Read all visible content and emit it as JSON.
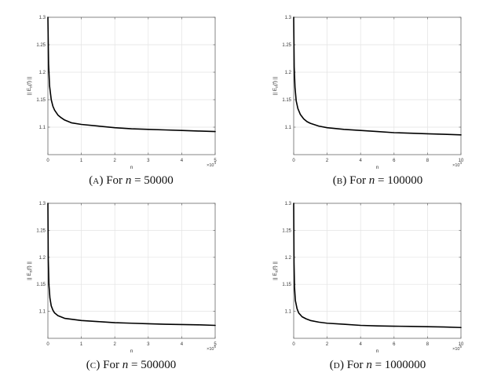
{
  "chart_data": [
    {
      "type": "line",
      "caption": {
        "letter": "A",
        "prefix": "For",
        "variable": "n",
        "eq": "=",
        "value": "50000"
      },
      "xlabel": "n",
      "ylabel": "|| E_n(f) ||",
      "x_multiplier": "×10",
      "x_exponent": "4",
      "xlim": [
        0,
        5
      ],
      "ylim": [
        1.05,
        1.3
      ],
      "xticks": [
        0,
        1,
        2,
        3,
        4,
        5
      ],
      "xtick_labels": [
        "0",
        "1",
        "2",
        "3",
        "4",
        "5"
      ],
      "yticks": [
        1.1,
        1.15,
        1.2,
        1.25,
        1.3
      ],
      "ytick_labels": [
        "1.1",
        "1.15",
        "1.2",
        "1.25",
        "1.3"
      ],
      "grid": true,
      "series": [
        {
          "color": "#000000",
          "x": [
            0.0,
            0.02,
            0.05,
            0.1,
            0.15,
            0.2,
            0.3,
            0.4,
            0.5,
            0.7,
            1,
            1.5,
            2,
            2.5,
            3,
            3.5,
            4,
            4.5,
            5
          ],
          "y": [
            1.3,
            1.215,
            1.175,
            1.15,
            1.138,
            1.131,
            1.122,
            1.117,
            1.113,
            1.108,
            1.105,
            1.102,
            1.099,
            1.097,
            1.096,
            1.095,
            1.094,
            1.093,
            1.092
          ]
        }
      ]
    },
    {
      "type": "line",
      "caption": {
        "letter": "B",
        "prefix": "For",
        "variable": "n",
        "eq": "=",
        "value": "100000"
      },
      "xlabel": "n",
      "ylabel": "|| E_n(f) ||",
      "x_multiplier": "×10",
      "x_exponent": "4",
      "xlim": [
        0,
        10
      ],
      "ylim": [
        1.05,
        1.3
      ],
      "xticks": [
        0,
        2,
        4,
        6,
        8,
        10
      ],
      "xtick_labels": [
        "0",
        "2",
        "4",
        "6",
        "8",
        "10"
      ],
      "yticks": [
        1.1,
        1.15,
        1.2,
        1.25,
        1.3
      ],
      "ytick_labels": [
        "1.1",
        "1.15",
        "1.2",
        "1.25",
        "1.3"
      ],
      "grid": true,
      "series": [
        {
          "color": "#000000",
          "x": [
            0.0,
            0.03,
            0.08,
            0.15,
            0.25,
            0.4,
            0.6,
            0.8,
            1,
            1.5,
            2,
            3,
            4,
            5,
            6,
            7,
            8,
            9,
            10
          ],
          "y": [
            1.3,
            1.21,
            1.172,
            1.148,
            1.134,
            1.123,
            1.115,
            1.11,
            1.107,
            1.102,
            1.099,
            1.096,
            1.094,
            1.092,
            1.09,
            1.089,
            1.088,
            1.087,
            1.086
          ]
        }
      ]
    },
    {
      "type": "line",
      "caption": {
        "letter": "C",
        "prefix": "For",
        "variable": "n",
        "eq": "=",
        "value": "500000"
      },
      "xlabel": "n",
      "ylabel": "|| E_n(f) ||",
      "x_multiplier": "×10",
      "x_exponent": "5",
      "xlim": [
        0,
        5
      ],
      "ylim": [
        1.05,
        1.3
      ],
      "xticks": [
        0,
        1,
        2,
        3,
        4,
        5
      ],
      "xtick_labels": [
        "0",
        "1",
        "2",
        "3",
        "4",
        "5"
      ],
      "yticks": [
        1.1,
        1.15,
        1.2,
        1.25,
        1.3
      ],
      "ytick_labels": [
        "1.1",
        "1.15",
        "1.2",
        "1.25",
        "1.3"
      ],
      "grid": true,
      "series": [
        {
          "color": "#000000",
          "x": [
            0.0,
            0.01,
            0.03,
            0.06,
            0.1,
            0.15,
            0.2,
            0.3,
            0.5,
            0.75,
            1,
            1.5,
            2,
            2.5,
            3,
            3.5,
            4,
            4.5,
            5
          ],
          "y": [
            1.3,
            1.2,
            1.15,
            1.125,
            1.11,
            1.102,
            1.097,
            1.092,
            1.087,
            1.085,
            1.083,
            1.081,
            1.079,
            1.078,
            1.077,
            1.076,
            1.0755,
            1.075,
            1.074
          ]
        }
      ]
    },
    {
      "type": "line",
      "caption": {
        "letter": "D",
        "prefix": "For",
        "variable": "n",
        "eq": "=",
        "value": "1000000"
      },
      "xlabel": "n",
      "ylabel": "|| E_n(f) ||",
      "x_multiplier": "×10",
      "x_exponent": "5",
      "xlim": [
        0,
        10
      ],
      "ylim": [
        1.05,
        1.3
      ],
      "xticks": [
        0,
        2,
        4,
        6,
        8,
        10
      ],
      "xtick_labels": [
        "0",
        "2",
        "4",
        "6",
        "8",
        "10"
      ],
      "yticks": [
        1.1,
        1.15,
        1.2,
        1.25,
        1.3
      ],
      "ytick_labels": [
        "1.1",
        "1.15",
        "1.2",
        "1.25",
        "1.3"
      ],
      "grid": true,
      "series": [
        {
          "color": "#000000",
          "x": [
            0.0,
            0.02,
            0.05,
            0.1,
            0.2,
            0.3,
            0.5,
            0.75,
            1,
            1.5,
            2,
            3,
            4,
            5,
            6,
            7,
            8,
            9,
            10
          ],
          "y": [
            1.3,
            1.19,
            1.145,
            1.12,
            1.105,
            1.097,
            1.09,
            1.086,
            1.083,
            1.08,
            1.078,
            1.076,
            1.074,
            1.073,
            1.0725,
            1.072,
            1.0715,
            1.071,
            1.07
          ]
        }
      ]
    }
  ]
}
